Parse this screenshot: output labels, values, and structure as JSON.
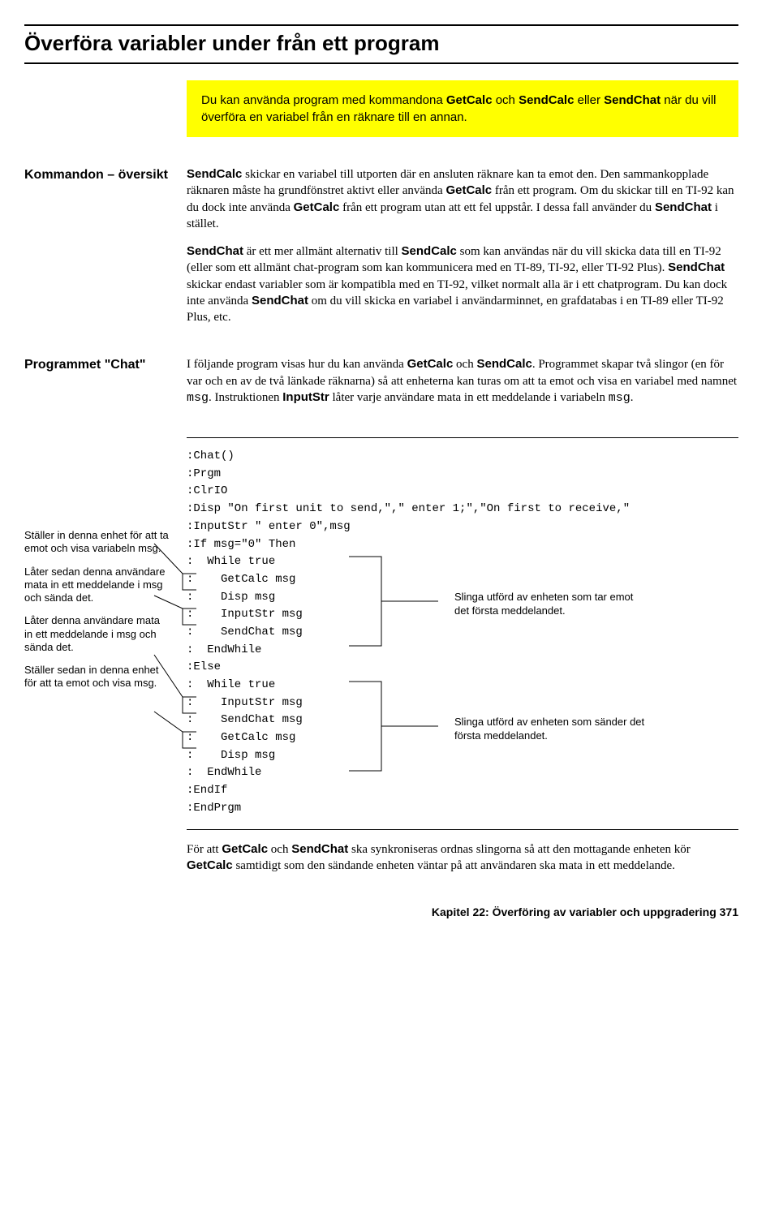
{
  "title": "Överföra variabler under från ett program",
  "intro_html": "Du kan använda program med kommandona <b>GetCalc</b> och <b>SendCalc</b> eller <b>SendChat</b> när du vill överföra en variabel från en räknare till en annan.",
  "section1": {
    "label": "Kommandon – översikt",
    "p1_html": "<b>SendCalc</b> skickar en variabel till utporten där en ansluten räknare kan ta emot den. Den sammankopplade räknaren måste ha grundfönstret aktivt eller använda <b>GetCalc</b> från ett program. Om du skickar till en TI-92 kan du dock inte använda <b>GetCalc</b> från ett program utan att ett fel uppstår. I dessa fall använder du <b>SendChat</b> i stället.",
    "p2_html": "<b>SendChat</b> är ett mer allmänt alternativ till <b>SendCalc</b> som kan användas när du vill skicka data till en TI-92 (eller som ett allmänt chat-program som kan kommunicera med en TI-89, TI-92, eller TI-92 Plus). <b>SendChat</b> skickar endast variabler som är kompatibla med en TI-92, vilket normalt alla är i ett chatprogram. Du kan dock inte använda <b>SendChat</b> om du vill skicka en variabel i användarminnet, en grafdatabas i en TI-89 eller TI-92 Plus, etc."
  },
  "section2": {
    "label": "Programmet \"Chat\"",
    "p1_html": "I följande program visas hur du kan använda <b>GetCalc</b> och <b>SendCalc</b>. Programmet skapar två slingor (en för var och en av de två länkade räknarna) så att enheterna kan turas om att ta emot och visa en variabel med namnet <span class=\"mono\">msg</span>. Instruktionen <b>InputStr</b> låter varje användare mata in ett meddelande i variabeln <span class=\"mono\">msg</span>."
  },
  "side_notes": {
    "n1": "Ställer in denna enhet för att ta emot och visa variabeln msg.",
    "n2": "Låter sedan denna användare mata in ett meddelande i msg och sända det.",
    "n3": "Låter denna användare mata in ett meddelande i msg och sända det.",
    "n4": "Ställer sedan in denna enhet för att ta emot och visa msg."
  },
  "right_notes": {
    "r1": "Slinga utförd av enheten som tar emot det första meddelandet.",
    "r2": "Slinga utförd av enheten som sänder det första meddelandet."
  },
  "code": ":Chat()\n:Prgm\n:ClrIO\n:Disp \"On first unit to send,\",\" enter 1;\",\"On first to receive,\"\n:InputStr \" enter 0\",msg\n:If msg=\"0\" Then\n:  While true\n:    GetCalc msg\n:    Disp msg\n:    InputStr msg\n:    SendChat msg\n:  EndWhile\n:Else\n:  While true\n:    InputStr msg\n:    SendChat msg\n:    GetCalc msg\n:    Disp msg\n:  EndWhile\n:EndIf\n:EndPrgm",
  "closing_html": "För att <b>GetCalc</b> och <b>SendChat</b> ska synkroniseras ordnas slingorna så att den mottagande enheten kör <b>GetCalc</b> samtidigt som den sändande enheten väntar på att användaren ska mata in ett meddelande.",
  "footer": "Kapitel 22: Överföring av variabler och uppgradering    371"
}
